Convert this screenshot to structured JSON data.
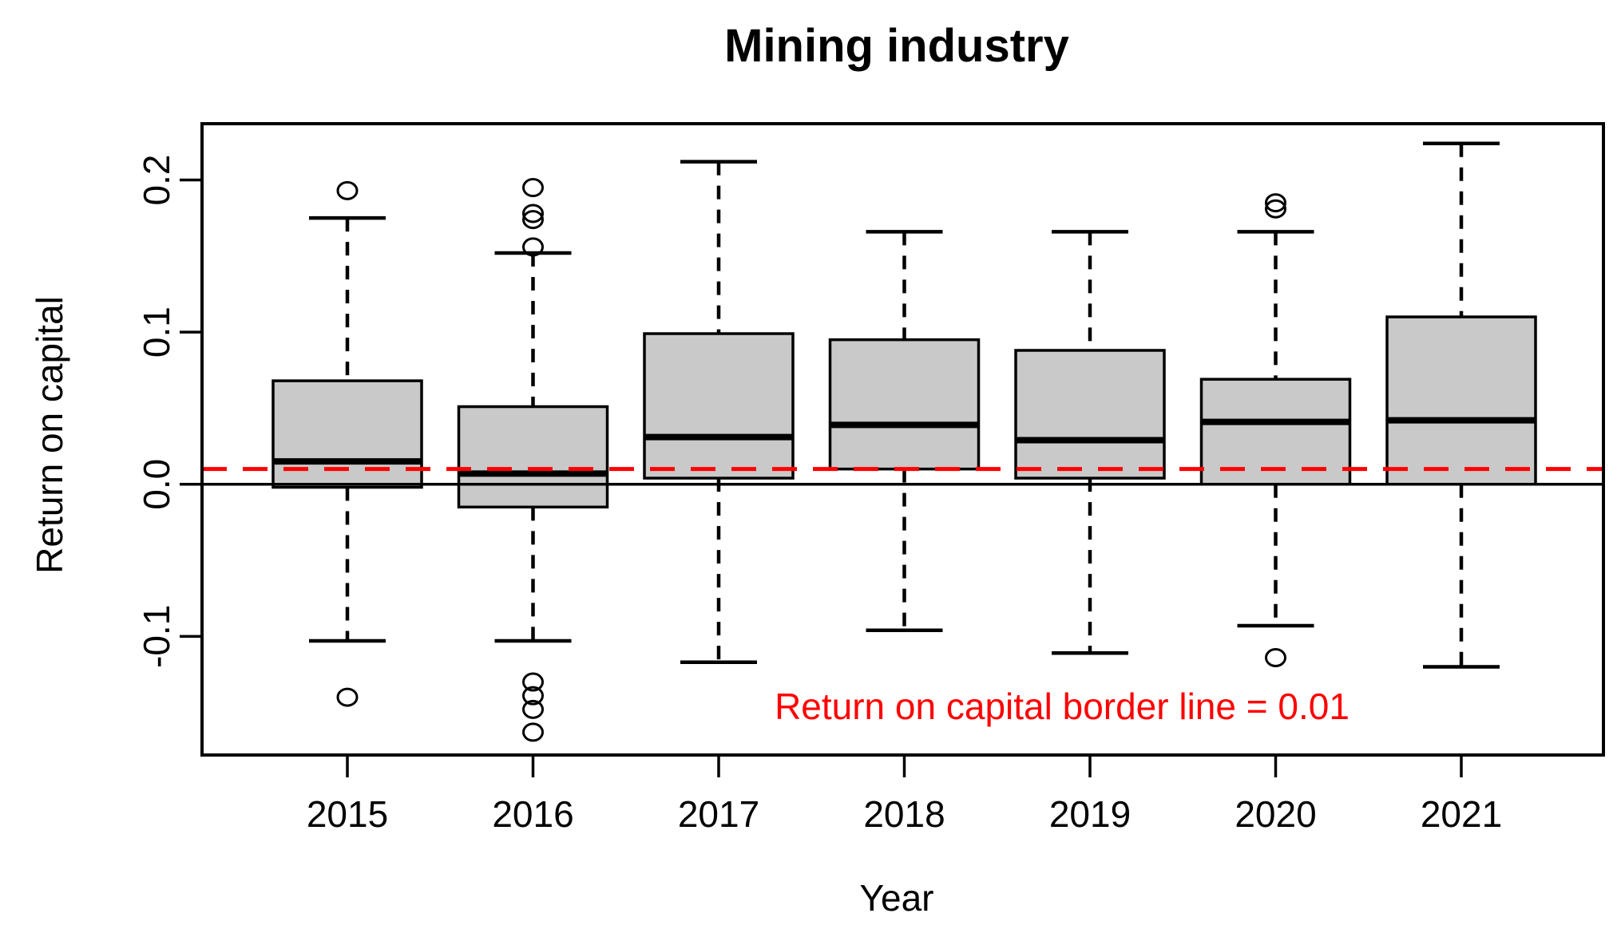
{
  "chart_data": {
    "type": "boxplot",
    "title": "Mining industry",
    "xlabel": "Year",
    "ylabel": "Return on capital",
    "categories": [
      "2015",
      "2016",
      "2017",
      "2018",
      "2019",
      "2020",
      "2021"
    ],
    "series": [
      {
        "year": "2015",
        "whisker_low": -0.103,
        "q1": -0.002,
        "median": 0.015,
        "q3": 0.068,
        "whisker_high": 0.175,
        "outliers": [
          0.193,
          -0.14
        ]
      },
      {
        "year": "2016",
        "whisker_low": -0.103,
        "q1": -0.015,
        "median": 0.007,
        "q3": 0.051,
        "whisker_high": 0.152,
        "outliers": [
          0.195,
          0.178,
          0.174,
          0.156,
          -0.13,
          -0.139,
          -0.148,
          -0.163
        ]
      },
      {
        "year": "2017",
        "whisker_low": -0.117,
        "q1": 0.004,
        "median": 0.031,
        "q3": 0.099,
        "whisker_high": 0.212,
        "outliers": []
      },
      {
        "year": "2018",
        "whisker_low": -0.096,
        "q1": 0.01,
        "median": 0.039,
        "q3": 0.095,
        "whisker_high": 0.166,
        "outliers": []
      },
      {
        "year": "2019",
        "whisker_low": -0.111,
        "q1": 0.004,
        "median": 0.029,
        "q3": 0.088,
        "whisker_high": 0.166,
        "outliers": []
      },
      {
        "year": "2020",
        "whisker_low": -0.093,
        "q1": 0.0,
        "median": 0.041,
        "q3": 0.069,
        "whisker_high": 0.166,
        "outliers": [
          0.185,
          0.181,
          -0.114
        ]
      },
      {
        "year": "2021",
        "whisker_low": -0.12,
        "q1": 0.0,
        "median": 0.042,
        "q3": 0.11,
        "whisker_high": 0.224,
        "outliers": []
      }
    ],
    "y_ticks": [
      0.2,
      0.1,
      0.0,
      -0.1
    ],
    "y_tick_labels": [
      "0.2",
      "0.1",
      "0.0",
      "-0.1"
    ],
    "ylim": [
      -0.178,
      0.237
    ],
    "grid": false,
    "legend": "none",
    "zero_line": 0.0,
    "refline": {
      "value": 0.01,
      "label": "Return on capital border line = 0.01",
      "color": "#ff0000",
      "style": "dashed"
    },
    "colors": {
      "box_fill": "#c9c9c9",
      "box_border": "#000000",
      "zero_line": "#000000",
      "background": "#ffffff"
    }
  }
}
